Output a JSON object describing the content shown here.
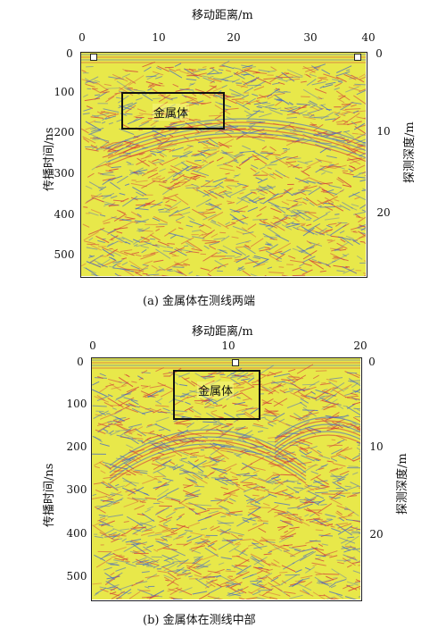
{
  "figure_a": {
    "x_title": "移动距离/m",
    "x_ticks": [
      "0",
      "10",
      "20",
      "30",
      "40"
    ],
    "y_left_title": "传播时间/ns",
    "y_left_ticks": [
      "0",
      "100",
      "200",
      "300",
      "400",
      "500"
    ],
    "y_right_title": "探测深度/m",
    "y_right_ticks": [
      "0",
      "10",
      "20"
    ],
    "annotation": "金属体",
    "caption": "(a) 金属体在测线两端"
  },
  "figure_b": {
    "x_title": "移动距离/m",
    "x_ticks": [
      "0",
      "10",
      "20"
    ],
    "y_left_title": "传播时间/ns",
    "y_left_ticks": [
      "0",
      "100",
      "200",
      "300",
      "400",
      "500"
    ],
    "y_right_title": "探测深度/m",
    "y_right_ticks": [
      "0",
      "10",
      "20"
    ],
    "annotation": "金属体",
    "caption": "(b) 金属体在测线中部"
  },
  "colors": {
    "background": "#e8e84a",
    "trace_red": "#d23a3a",
    "trace_blue": "#4466c8"
  }
}
